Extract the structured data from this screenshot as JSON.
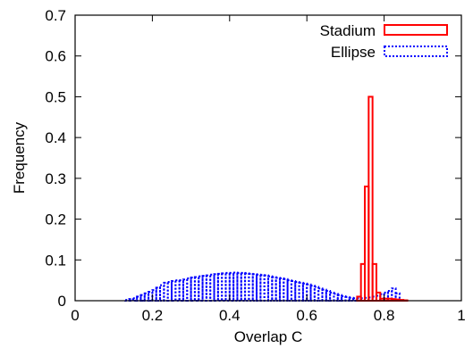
{
  "chart_data": {
    "type": "bar",
    "xlabel": "Overlap C",
    "ylabel": "Frequency",
    "xlim": [
      0,
      1
    ],
    "ylim": [
      0,
      0.7
    ],
    "xticks": [
      0,
      0.2,
      0.4,
      0.6,
      0.8,
      1
    ],
    "xtick_labels": [
      "0",
      "0.2",
      "0.4",
      "0.6",
      "0.8",
      "1"
    ],
    "yticks": [
      0,
      0.1,
      0.2,
      0.3,
      0.4,
      0.5,
      0.6,
      0.7
    ],
    "ytick_labels": [
      "0",
      "0.1",
      "0.2",
      "0.3",
      "0.4",
      "0.5",
      "0.6",
      "0.7"
    ],
    "grid": false,
    "legend_position": "top-right",
    "bin_width": 0.01,
    "series": [
      {
        "name": "Stadium",
        "color": "#ff0000",
        "style": "solid",
        "x": [
          0.73,
          0.74,
          0.75,
          0.76,
          0.77,
          0.78,
          0.79,
          0.8,
          0.81,
          0.82,
          0.83,
          0.84,
          0.85
        ],
        "values": [
          0.01,
          0.09,
          0.28,
          0.5,
          0.09,
          0.02,
          0.005,
          0.005,
          0.005,
          0.004,
          0.003,
          0.002,
          0.001
        ]
      },
      {
        "name": "Ellipse",
        "color": "#0000ff",
        "style": "dotted",
        "x": [
          0.13,
          0.14,
          0.15,
          0.16,
          0.17,
          0.18,
          0.19,
          0.2,
          0.21,
          0.22,
          0.23,
          0.24,
          0.25,
          0.26,
          0.27,
          0.28,
          0.29,
          0.3,
          0.31,
          0.32,
          0.33,
          0.34,
          0.35,
          0.36,
          0.37,
          0.38,
          0.39,
          0.4,
          0.41,
          0.42,
          0.43,
          0.44,
          0.45,
          0.46,
          0.47,
          0.48,
          0.49,
          0.5,
          0.51,
          0.52,
          0.53,
          0.54,
          0.55,
          0.56,
          0.57,
          0.58,
          0.59,
          0.6,
          0.61,
          0.62,
          0.63,
          0.64,
          0.65,
          0.66,
          0.67,
          0.68,
          0.69,
          0.7,
          0.71,
          0.72,
          0.73,
          0.74,
          0.75,
          0.76,
          0.77,
          0.78,
          0.79,
          0.8,
          0.81,
          0.82,
          0.83
        ],
        "values": [
          0.002,
          0.004,
          0.006,
          0.01,
          0.014,
          0.018,
          0.022,
          0.026,
          0.032,
          0.038,
          0.044,
          0.046,
          0.048,
          0.05,
          0.05,
          0.052,
          0.055,
          0.057,
          0.058,
          0.06,
          0.061,
          0.062,
          0.064,
          0.065,
          0.066,
          0.067,
          0.068,
          0.068,
          0.069,
          0.068,
          0.068,
          0.067,
          0.066,
          0.065,
          0.064,
          0.063,
          0.062,
          0.06,
          0.058,
          0.056,
          0.055,
          0.053,
          0.05,
          0.048,
          0.046,
          0.044,
          0.042,
          0.04,
          0.037,
          0.034,
          0.03,
          0.027,
          0.024,
          0.02,
          0.017,
          0.014,
          0.011,
          0.009,
          0.007,
          0.006,
          0.006,
          0.006,
          0.007,
          0.008,
          0.01,
          0.012,
          0.016,
          0.02,
          0.024,
          0.03,
          0.018
        ]
      }
    ]
  }
}
